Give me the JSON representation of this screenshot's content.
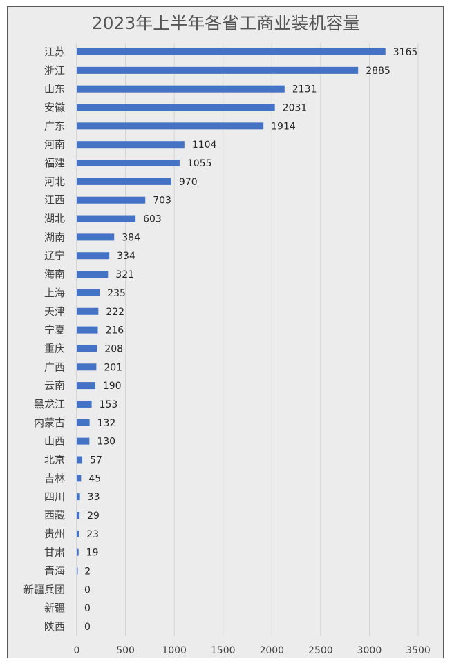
{
  "chart_data": {
    "type": "bar",
    "orientation": "horizontal",
    "title": "2023年上半年各省工商业装机容量",
    "xlabel": "",
    "ylabel": "",
    "xlim": [
      0,
      3500
    ],
    "x_ticks": [
      "0",
      "500",
      "1000",
      "1500",
      "2000",
      "2500",
      "3000",
      "3500"
    ],
    "grid": true,
    "legend": "none",
    "bar_color": "#4472c4",
    "background_color": "#ececec",
    "categories": [
      "江苏",
      "浙江",
      "山东",
      "安徽",
      "广东",
      "河南",
      "福建",
      "河北",
      "江西",
      "湖北",
      "湖南",
      "辽宁",
      "海南",
      "上海",
      "天津",
      "宁夏",
      "重庆",
      "广西",
      "云南",
      "黑龙江",
      "内蒙古",
      "山西",
      "北京",
      "吉林",
      "四川",
      "西藏",
      "贵州",
      "甘肃",
      "青海",
      "新疆兵团",
      "新疆",
      "陕西"
    ],
    "values": [
      3165,
      2885,
      2131,
      2031,
      1914,
      1104,
      1055,
      970,
      703,
      603,
      384,
      334,
      321,
      235,
      222,
      216,
      208,
      201,
      190,
      153,
      132,
      130,
      57,
      45,
      33,
      29,
      23,
      19,
      2,
      0,
      0,
      0
    ],
    "data_labels": [
      "3165",
      "2885",
      "2131",
      "2031",
      "1914",
      "1104",
      "1055",
      "970",
      "703",
      "603",
      "384",
      "334",
      "321",
      "235",
      "222",
      "216",
      "208",
      "201",
      "190",
      "153",
      "132",
      "130",
      "57",
      "45",
      "33",
      "29",
      "23",
      "19",
      "2",
      "0",
      "0",
      "0"
    ]
  }
}
